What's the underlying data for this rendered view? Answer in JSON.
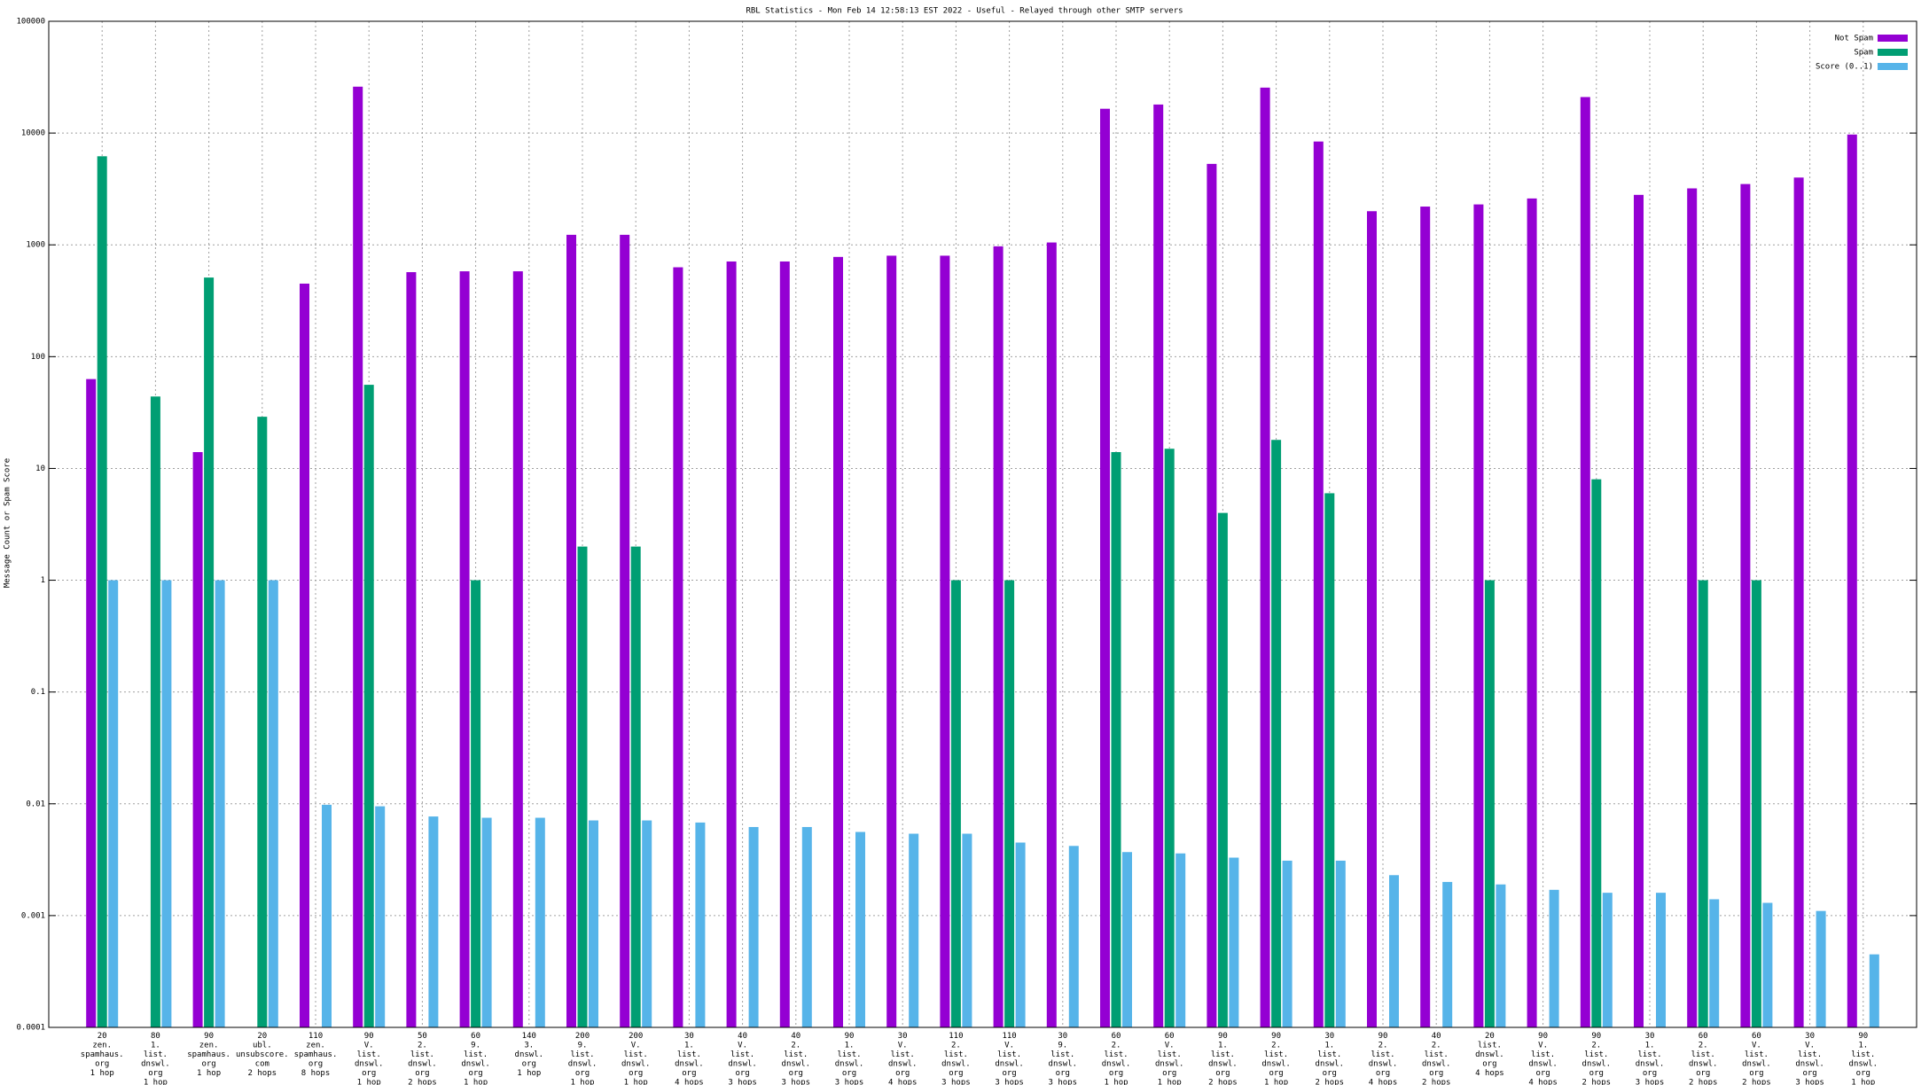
{
  "chart_data": {
    "type": "bar",
    "title": "RBL Statistics - Mon Feb 14 12:58:13 EST 2022 - Useful - Relayed through other SMTP servers",
    "ylabel": "Message Count or Spam Score",
    "yscale": "log",
    "grid": true,
    "legend": "upper right",
    "ylim": [
      0.0001,
      100000
    ],
    "yticks": [
      0.0001,
      0.001,
      0.01,
      0.1,
      1,
      10,
      100,
      1000,
      10000,
      100000
    ],
    "categories": [
      [
        "20",
        "zen.",
        "spamhaus.",
        "org",
        "1 hop"
      ],
      [
        "80",
        "1.",
        "list.",
        "dnswl.",
        "org",
        "1 hop"
      ],
      [
        "90",
        "zen.",
        "spamhaus.",
        "org",
        "1 hop"
      ],
      [
        "20",
        "ubl.",
        "unsubscore.",
        "com",
        "2 hops"
      ],
      [
        "110",
        "zen.",
        "spamhaus.",
        "org",
        "8 hops"
      ],
      [
        "90",
        "V.",
        "list.",
        "dnswl.",
        "org",
        "1 hop"
      ],
      [
        "50",
        "2.",
        "list.",
        "dnswl.",
        "org",
        "2 hops"
      ],
      [
        "60",
        "9.",
        "list.",
        "dnswl.",
        "org",
        "1 hop"
      ],
      [
        "140",
        "3.",
        "dnswl.",
        "org",
        "1 hop"
      ],
      [
        "200",
        "9.",
        "list.",
        "dnswl.",
        "org",
        "1 hop"
      ],
      [
        "200",
        "V.",
        "list.",
        "dnswl.",
        "org",
        "1 hop"
      ],
      [
        "30",
        "1.",
        "list.",
        "dnswl.",
        "org",
        "4 hops"
      ],
      [
        "40",
        "V.",
        "list.",
        "dnswl.",
        "org",
        "3 hops"
      ],
      [
        "40",
        "2.",
        "list.",
        "dnswl.",
        "org",
        "3 hops"
      ],
      [
        "90",
        "1.",
        "list.",
        "dnswl.",
        "org",
        "3 hops"
      ],
      [
        "30",
        "V.",
        "list.",
        "dnswl.",
        "org",
        "4 hops"
      ],
      [
        "110",
        "2.",
        "list.",
        "dnswl.",
        "org",
        "3 hops"
      ],
      [
        "110",
        "V.",
        "list.",
        "dnswl.",
        "org",
        "3 hops"
      ],
      [
        "30",
        "9.",
        "list.",
        "dnswl.",
        "org",
        "3 hops"
      ],
      [
        "60",
        "2.",
        "list.",
        "dnswl.",
        "org",
        "1 hop"
      ],
      [
        "60",
        "V.",
        "list.",
        "dnswl.",
        "org",
        "1 hop"
      ],
      [
        "90",
        "1.",
        "list.",
        "dnswl.",
        "org",
        "2 hops"
      ],
      [
        "90",
        "2.",
        "list.",
        "dnswl.",
        "org",
        "1 hop"
      ],
      [
        "30",
        "1.",
        "list.",
        "dnswl.",
        "org",
        "2 hops"
      ],
      [
        "90",
        "2.",
        "list.",
        "dnswl.",
        "org",
        "4 hops"
      ],
      [
        "40",
        "2.",
        "list.",
        "dnswl.",
        "org",
        "2 hops"
      ],
      [
        "20",
        "list.",
        "dnswl.",
        "org",
        "4 hops"
      ],
      [
        "90",
        "V.",
        "list.",
        "dnswl.",
        "org",
        "4 hops"
      ],
      [
        "90",
        "2.",
        "list.",
        "dnswl.",
        "org",
        "2 hops"
      ],
      [
        "30",
        "1.",
        "list.",
        "dnswl.",
        "org",
        "3 hops"
      ],
      [
        "60",
        "2.",
        "list.",
        "dnswl.",
        "org",
        "2 hops"
      ],
      [
        "60",
        "V.",
        "list.",
        "dnswl.",
        "org",
        "2 hops"
      ],
      [
        "30",
        "V.",
        "list.",
        "dnswl.",
        "org",
        "3 hops"
      ],
      [
        "90",
        "1.",
        "list.",
        "dnswl.",
        "org",
        "1 hop"
      ]
    ],
    "series": [
      {
        "name": "Not Spam",
        "color": "#9400d3",
        "values": [
          63,
          null,
          14,
          null,
          450,
          26000,
          570,
          580,
          580,
          1230,
          1230,
          630,
          710,
          710,
          780,
          800,
          800,
          970,
          1050,
          16500,
          18000,
          5300,
          25500,
          8400,
          2000,
          2200,
          2300,
          2600,
          21000,
          2800,
          3200,
          3500,
          4000,
          9700
        ]
      },
      {
        "name": "Spam",
        "color": "#009e73",
        "values": [
          6200,
          44,
          510,
          29,
          null,
          56,
          null,
          1,
          null,
          2,
          2,
          null,
          null,
          null,
          null,
          null,
          1,
          1,
          null,
          14,
          15,
          4,
          18,
          6,
          null,
          null,
          1,
          null,
          8,
          null,
          1,
          1,
          null,
          null
        ]
      },
      {
        "name": "Score (0..1)",
        "color": "#56b4e9",
        "values": [
          1,
          1,
          1,
          1,
          0.0098,
          0.0095,
          0.0077,
          0.0075,
          0.0075,
          0.0071,
          0.0071,
          0.0068,
          0.0062,
          0.0062,
          0.0056,
          0.0054,
          0.0054,
          0.0045,
          0.0042,
          0.0037,
          0.0036,
          0.0033,
          0.0031,
          0.0031,
          0.0023,
          0.002,
          0.0019,
          0.0017,
          0.0016,
          0.0016,
          0.0014,
          0.0013,
          0.0011,
          0.00045
        ]
      }
    ]
  }
}
